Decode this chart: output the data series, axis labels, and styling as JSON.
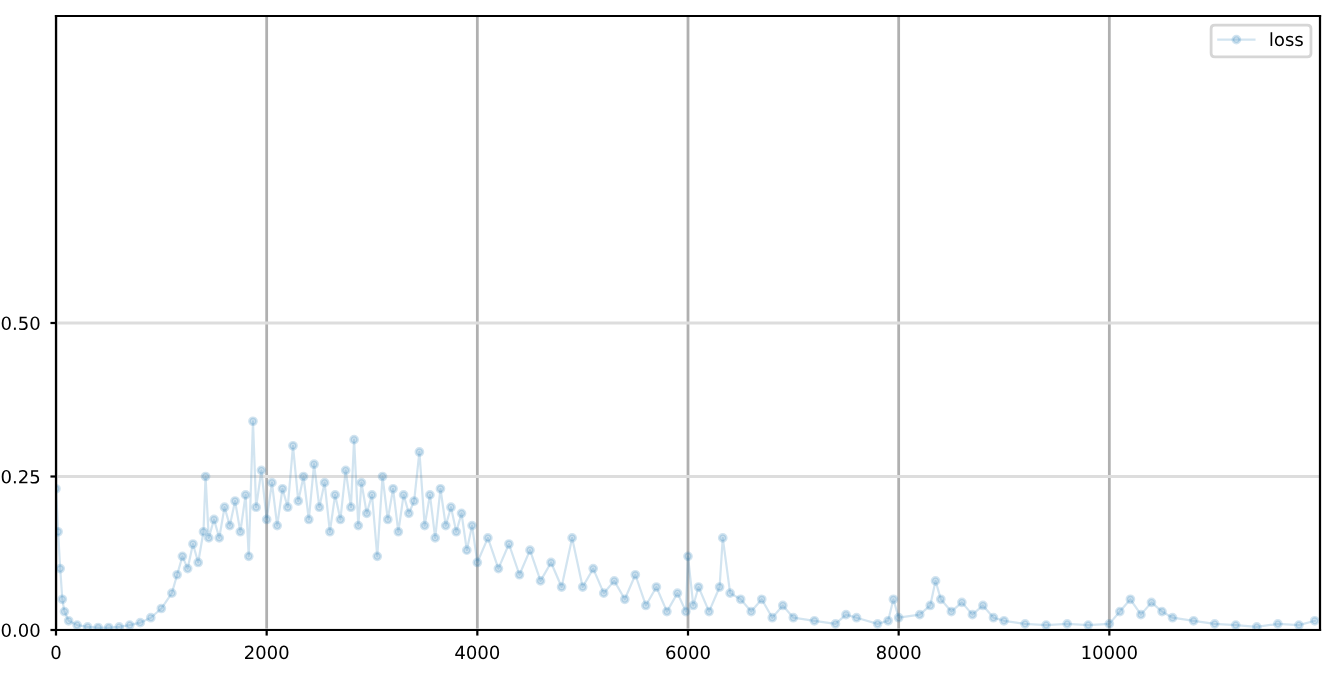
{
  "chart_data": {
    "type": "line",
    "marker": "circle",
    "grid": true,
    "legend": "top right",
    "xlim": [
      0,
      12000
    ],
    "xticks": [
      0,
      2000,
      4000,
      6000,
      8000,
      10000
    ],
    "ylim": [
      0,
      1.0
    ],
    "yticks": [
      {
        "value": 0,
        "label": "0.00"
      },
      {
        "value": 0.25,
        "label": "0.25"
      },
      {
        "value": 0.5,
        "label": "0.50"
      }
    ],
    "series": [
      {
        "name": "loss",
        "color": "#1f77b4",
        "x": [
          0,
          20,
          40,
          60,
          80,
          120,
          200,
          300,
          400,
          500,
          600,
          700,
          800,
          900,
          1000,
          1100,
          1150,
          1200,
          1250,
          1300,
          1350,
          1400,
          1420,
          1450,
          1500,
          1550,
          1600,
          1650,
          1700,
          1750,
          1800,
          1830,
          1870,
          1900,
          1950,
          2000,
          2050,
          2100,
          2150,
          2200,
          2250,
          2300,
          2350,
          2400,
          2450,
          2500,
          2550,
          2600,
          2650,
          2700,
          2750,
          2800,
          2830,
          2870,
          2900,
          2950,
          3000,
          3050,
          3100,
          3150,
          3200,
          3250,
          3300,
          3350,
          3400,
          3450,
          3500,
          3550,
          3600,
          3650,
          3700,
          3750,
          3800,
          3850,
          3900,
          3950,
          4000,
          4100,
          4200,
          4300,
          4400,
          4500,
          4600,
          4700,
          4800,
          4900,
          5000,
          5100,
          5200,
          5300,
          5400,
          5500,
          5600,
          5700,
          5800,
          5900,
          5980,
          6000,
          6050,
          6100,
          6200,
          6300,
          6330,
          6400,
          6500,
          6600,
          6700,
          6800,
          6900,
          7000,
          7200,
          7400,
          7500,
          7600,
          7800,
          7900,
          7950,
          8000,
          8200,
          8300,
          8350,
          8400,
          8500,
          8600,
          8700,
          8800,
          8900,
          9000,
          9200,
          9400,
          9600,
          9800,
          10000,
          10100,
          10200,
          10300,
          10400,
          10500,
          10600,
          10800,
          11000,
          11200,
          11400,
          11600,
          11800,
          11950
        ],
        "values": [
          0.23,
          0.16,
          0.1,
          0.05,
          0.03,
          0.015,
          0.008,
          0.005,
          0.004,
          0.004,
          0.005,
          0.008,
          0.012,
          0.02,
          0.035,
          0.06,
          0.09,
          0.12,
          0.1,
          0.14,
          0.11,
          0.16,
          0.25,
          0.15,
          0.18,
          0.15,
          0.2,
          0.17,
          0.21,
          0.16,
          0.22,
          0.12,
          0.34,
          0.2,
          0.26,
          0.18,
          0.24,
          0.17,
          0.23,
          0.2,
          0.3,
          0.21,
          0.25,
          0.18,
          0.27,
          0.2,
          0.24,
          0.16,
          0.22,
          0.18,
          0.26,
          0.2,
          0.31,
          0.17,
          0.24,
          0.19,
          0.22,
          0.12,
          0.25,
          0.18,
          0.23,
          0.16,
          0.22,
          0.19,
          0.21,
          0.29,
          0.17,
          0.22,
          0.15,
          0.23,
          0.17,
          0.2,
          0.16,
          0.19,
          0.13,
          0.17,
          0.11,
          0.15,
          0.1,
          0.14,
          0.09,
          0.13,
          0.08,
          0.11,
          0.07,
          0.15,
          0.07,
          0.1,
          0.06,
          0.08,
          0.05,
          0.09,
          0.04,
          0.07,
          0.03,
          0.06,
          0.03,
          0.12,
          0.04,
          0.07,
          0.03,
          0.07,
          0.15,
          0.06,
          0.05,
          0.03,
          0.05,
          0.02,
          0.04,
          0.02,
          0.015,
          0.01,
          0.025,
          0.02,
          0.01,
          0.015,
          0.05,
          0.02,
          0.025,
          0.04,
          0.08,
          0.05,
          0.03,
          0.045,
          0.025,
          0.04,
          0.02,
          0.015,
          0.01,
          0.008,
          0.01,
          0.008,
          0.01,
          0.03,
          0.05,
          0.025,
          0.045,
          0.03,
          0.02,
          0.015,
          0.01,
          0.008,
          0.005,
          0.01,
          0.008,
          0.015
        ]
      }
    ]
  }
}
